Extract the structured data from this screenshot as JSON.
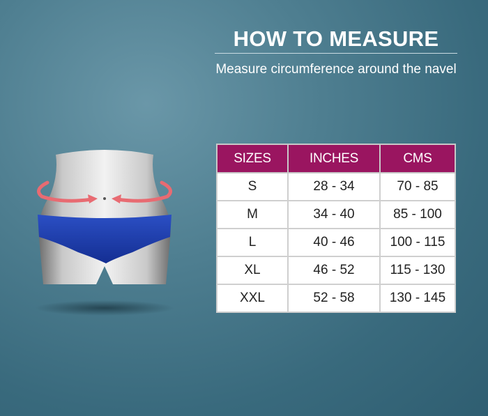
{
  "header": {
    "title": "HOW TO MEASURE",
    "subtitle": "Measure circumference around the navel"
  },
  "size_table": {
    "columns": [
      "SIZES",
      "INCHES",
      "CMS"
    ],
    "rows": [
      {
        "size": "S",
        "inches": "28 - 34",
        "cms": "70 - 85"
      },
      {
        "size": "M",
        "inches": "34 - 40",
        "cms": "85 - 100"
      },
      {
        "size": "L",
        "inches": "40 - 46",
        "cms": "100 - 115"
      },
      {
        "size": "XL",
        "inches": "46 - 52",
        "cms": "115 - 130"
      },
      {
        "size": "XXL",
        "inches": "52 - 58",
        "cms": "130 - 145"
      }
    ]
  },
  "colors": {
    "header_bg": "#9a1560",
    "brief": "#1c3fa8",
    "arrow": "#e86b72",
    "background": "#4f7f91"
  },
  "icons": [
    "mannequin-figure",
    "measure-arrow-icon"
  ]
}
